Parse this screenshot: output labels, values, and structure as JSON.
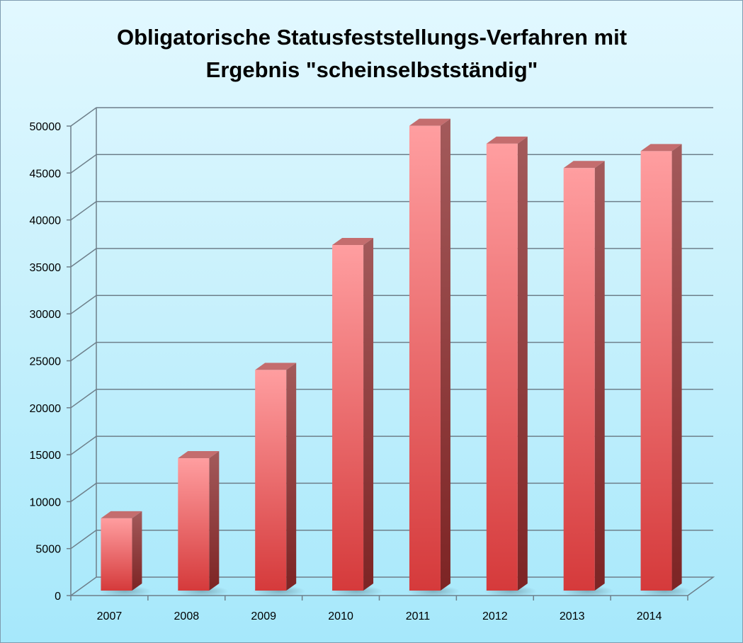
{
  "chart_data": {
    "type": "bar",
    "title_lines": [
      "Obligatorische Statusfeststellungs-Verfahren mit",
      "Ergebnis \"scheinselbstständig\""
    ],
    "categories": [
      "2007",
      "2008",
      "2009",
      "2010",
      "2011",
      "2012",
      "2013",
      "2014"
    ],
    "values": [
      7700,
      14100,
      23500,
      36800,
      49500,
      47600,
      45000,
      46800
    ],
    "y_ticks": [
      "0",
      "5000",
      "10000",
      "15000",
      "20000",
      "25000",
      "30000",
      "35000",
      "40000",
      "45000",
      "50000"
    ],
    "ylim": [
      0,
      50000
    ],
    "xlabel": "",
    "ylabel": "",
    "grid": true,
    "legend": "none",
    "style": "3d-column",
    "colors": {
      "bar_light": "#ff9ea0",
      "bar_dark": "#d53a3b",
      "bar_side": "#8c2f2f",
      "bar_top": "#c46d6e",
      "gridline": "#6e7f8a"
    }
  }
}
